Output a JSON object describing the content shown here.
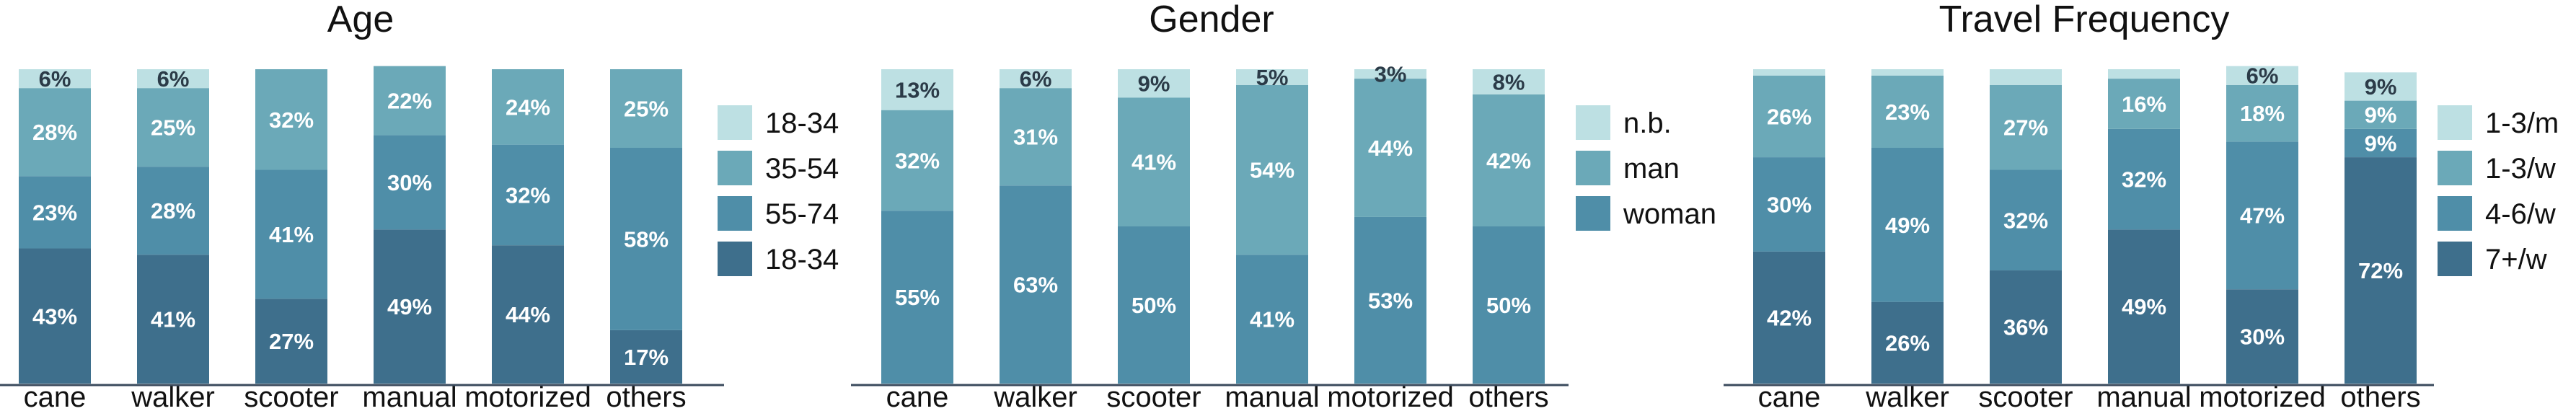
{
  "chart_data": [
    {
      "type": "bar",
      "stacked": true,
      "title": "Age",
      "categories": [
        "cane",
        "walker",
        "scooter",
        "manual",
        "motorized",
        "others"
      ],
      "series": [
        {
          "name": "18-34",
          "values": [
            43,
            41,
            27,
            49,
            44,
            17
          ],
          "color": "#3e6f8c",
          "value_labels": [
            "43%",
            "41%",
            "27%",
            "49%",
            "44%",
            "17%"
          ]
        },
        {
          "name": "55-74",
          "values": [
            23,
            28,
            41,
            30,
            32,
            58
          ],
          "color": "#4f8ea8",
          "value_labels": [
            "23%",
            "28%",
            "41%",
            "30%",
            "32%",
            "58%"
          ]
        },
        {
          "name": "35-54",
          "values": [
            28,
            25,
            32,
            22,
            24,
            25
          ],
          "color": "#6ba9b8",
          "value_labels": [
            "28%",
            "25%",
            "32%",
            "22%",
            "24%",
            "25%"
          ]
        },
        {
          "name": "18-34",
          "values": [
            6,
            6,
            0,
            0,
            0,
            0
          ],
          "color": "#bde0e3",
          "value_labels": [
            "6%",
            "6%",
            "",
            "",
            "",
            ""
          ]
        }
      ],
      "legend_order": [
        3,
        2,
        1,
        0
      ],
      "ylim": [
        0,
        100
      ]
    },
    {
      "type": "bar",
      "stacked": true,
      "title": "Gender",
      "categories": [
        "cane",
        "walker",
        "scooter",
        "manual",
        "motorized",
        "others"
      ],
      "series": [
        {
          "name": "woman",
          "values": [
            55,
            63,
            50,
            41,
            53,
            50
          ],
          "color": "#4f8ea8",
          "value_labels": [
            "55%",
            "63%",
            "50%",
            "41%",
            "53%",
            "50%"
          ]
        },
        {
          "name": "man",
          "values": [
            32,
            31,
            41,
            54,
            44,
            42
          ],
          "color": "#6ba9b8",
          "value_labels": [
            "32%",
            "31%",
            "41%",
            "54%",
            "44%",
            "42%"
          ]
        },
        {
          "name": "n.b.",
          "values": [
            13,
            6,
            9,
            5,
            3,
            8
          ],
          "color": "#bde0e3",
          "value_labels": [
            "13%",
            "6%",
            "9%",
            "5%",
            "3%",
            "8%"
          ]
        }
      ],
      "legend_order": [
        2,
        1,
        0
      ],
      "ylim": [
        0,
        100
      ]
    },
    {
      "type": "bar",
      "stacked": true,
      "title": "Travel Frequency",
      "categories": [
        "cane",
        "walker",
        "scooter",
        "manual",
        "motorized",
        "others"
      ],
      "series": [
        {
          "name": "7+/w",
          "values": [
            42,
            26,
            36,
            49,
            30,
            72
          ],
          "color": "#3e6f8c",
          "value_labels": [
            "42%",
            "26%",
            "36%",
            "49%",
            "30%",
            "72%"
          ]
        },
        {
          "name": "4-6/w",
          "values": [
            30,
            49,
            32,
            32,
            47,
            9
          ],
          "color": "#4f8ea8",
          "value_labels": [
            "30%",
            "49%",
            "32%",
            "32%",
            "47%",
            "9%"
          ]
        },
        {
          "name": "1-3/w",
          "values": [
            26,
            23,
            27,
            16,
            18,
            9
          ],
          "color": "#6ba9b8",
          "value_labels": [
            "26%",
            "23%",
            "27%",
            "16%",
            "18%",
            "9%"
          ]
        },
        {
          "name": "1-3/m",
          "values": [
            2,
            2,
            5,
            3,
            6,
            9
          ],
          "color": "#bde0e3",
          "value_labels": [
            "",
            "",
            "",
            "",
            "6%",
            "9%"
          ]
        }
      ],
      "legend_order": [
        3,
        2,
        1,
        0
      ],
      "ylim": [
        0,
        100
      ]
    }
  ]
}
